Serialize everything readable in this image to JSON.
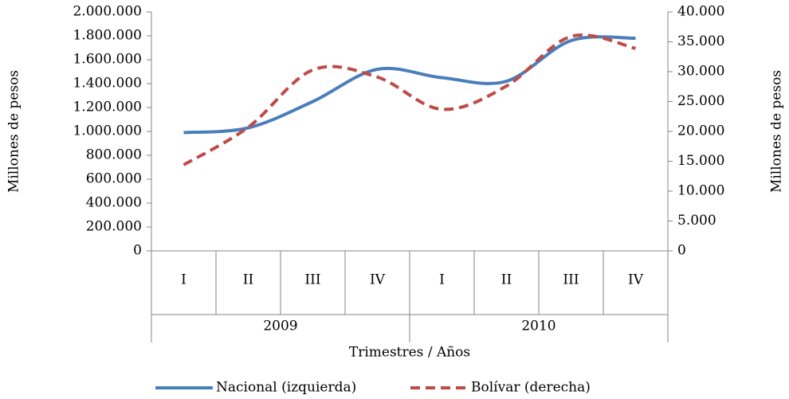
{
  "chart_data": {
    "type": "line",
    "x_label": "Trimestres / Años",
    "y_label": "Millones de pesos",
    "y2_label": "Millones de pesos",
    "categories": [
      "I",
      "II",
      "III",
      "IV",
      "I",
      "II",
      "III",
      "IV"
    ],
    "groups": [
      "2009",
      "2010"
    ],
    "ylim": [
      0,
      2000000
    ],
    "yticks": [
      0,
      {
        "value": 200000,
        "label": "200.000"
      },
      {
        "value": 400000,
        "label": "400.000"
      },
      {
        "value": 600000,
        "label": "600.000"
      },
      {
        "value": 800000,
        "label": "800.000"
      },
      {
        "value": 1000000,
        "label": "1.000.000"
      },
      {
        "value": 1200000,
        "label": "1.200.000"
      },
      {
        "value": 1400000,
        "label": "1.400.000"
      },
      {
        "value": 1600000,
        "label": "1.600.000"
      },
      {
        "value": 1800000,
        "label": "1.800.000"
      },
      {
        "value": 2000000,
        "label": "2.000.000"
      }
    ],
    "y2lim": [
      0,
      40000
    ],
    "y2ticks": [
      0,
      {
        "value": 5000,
        "label": "5.000"
      },
      {
        "value": 10000,
        "label": "10.000"
      },
      {
        "value": 15000,
        "label": "15.000"
      },
      {
        "value": 20000,
        "label": "20.000"
      },
      {
        "value": 25000,
        "label": "25.000"
      },
      {
        "value": 30000,
        "label": "30.000"
      },
      {
        "value": 35000,
        "label": "35.000"
      },
      {
        "value": 40000,
        "label": "40.000"
      }
    ],
    "series": [
      {
        "name": "Nacional (izquierda)",
        "color": "#4a7ebb",
        "dashed": false,
        "values": [
          990000,
          1030000,
          1250000,
          1520000,
          1450000,
          1420000,
          1760000,
          1780000
        ]
      },
      {
        "name": "Bolívar (derecha)",
        "color": "#be4b48",
        "dashed": true,
        "axis": "y2",
        "values": [
          14400,
          20700,
          30300,
          29100,
          23700,
          27600,
          35900,
          33900
        ]
      }
    ],
    "legend": "bottom"
  }
}
